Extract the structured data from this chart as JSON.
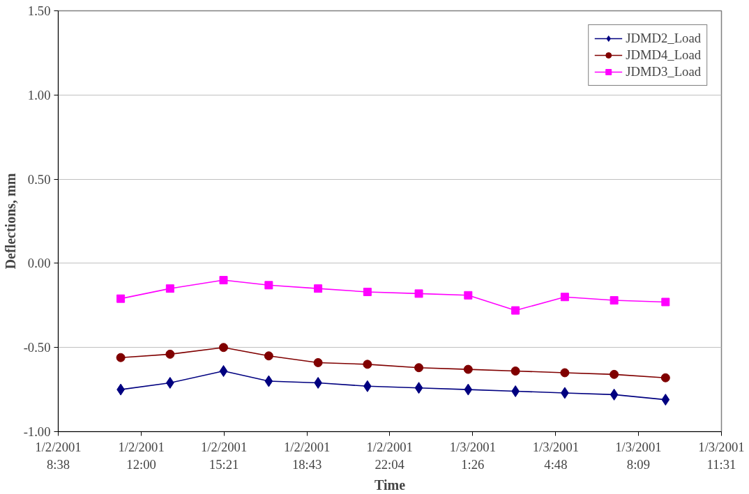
{
  "chart_data": {
    "type": "line",
    "xlabel": "Time",
    "ylabel": "Deflections, mm",
    "x": [
      "2001-01-02T11:10",
      "2001-01-02T13:10",
      "2001-01-02T15:20",
      "2001-01-02T17:10",
      "2001-01-02T19:10",
      "2001-01-02T21:10",
      "2001-01-02T23:15",
      "2001-01-03T01:15",
      "2001-01-03T03:10",
      "2001-01-03T05:10",
      "2001-01-03T07:10",
      "2001-01-03T09:15"
    ],
    "series": [
      {
        "name": "JDMD2_Load",
        "color": "#000080",
        "marker": "diamond",
        "values": [
          -0.75,
          -0.71,
          -0.64,
          -0.7,
          -0.71,
          -0.73,
          -0.74,
          -0.75,
          -0.76,
          -0.77,
          -0.78,
          -0.81
        ]
      },
      {
        "name": "JDMD4_Load",
        "color": "#800000",
        "marker": "circle",
        "values": [
          -0.56,
          -0.54,
          -0.5,
          -0.55,
          -0.59,
          -0.6,
          -0.62,
          -0.63,
          -0.64,
          -0.65,
          -0.66,
          -0.68
        ]
      },
      {
        "name": "JDMD3_Load",
        "color": "#ff00ff",
        "marker": "square",
        "values": [
          -0.21,
          -0.15,
          -0.1,
          -0.13,
          -0.15,
          -0.17,
          -0.18,
          -0.19,
          -0.28,
          -0.2,
          -0.22,
          -0.23
        ]
      }
    ],
    "xlim": [
      "2001-01-02T08:38",
      "2001-01-03T11:31"
    ],
    "xticks": [
      {
        "value": "2001-01-02T08:38",
        "label": "1/2/2001\n8:38"
      },
      {
        "value": "2001-01-02T12:00",
        "label": "1/2/2001\n12:00"
      },
      {
        "value": "2001-01-02T15:21",
        "label": "1/2/2001\n15:21"
      },
      {
        "value": "2001-01-02T18:43",
        "label": "1/2/2001\n18:43"
      },
      {
        "value": "2001-01-02T22:04",
        "label": "1/2/2001\n22:04"
      },
      {
        "value": "2001-01-03T01:26",
        "label": "1/3/2001\n1:26"
      },
      {
        "value": "2001-01-03T04:48",
        "label": "1/3/2001\n4:48"
      },
      {
        "value": "2001-01-03T08:09",
        "label": "1/3/2001\n8:09"
      },
      {
        "value": "2001-01-03T11:31",
        "label": "1/3/2001\n11:31"
      }
    ],
    "ylim": [
      -1.0,
      1.5
    ],
    "yticks": [
      {
        "value": -1.0,
        "label": "-1.00"
      },
      {
        "value": -0.5,
        "label": "-0.50"
      },
      {
        "value": 0.0,
        "label": "0.00"
      },
      {
        "value": 0.5,
        "label": "0.50"
      },
      {
        "value": 1.0,
        "label": "1.00"
      },
      {
        "value": 1.5,
        "label": "1.50"
      }
    ],
    "grid": "y",
    "legend": "top right",
    "line_style": "solid"
  }
}
